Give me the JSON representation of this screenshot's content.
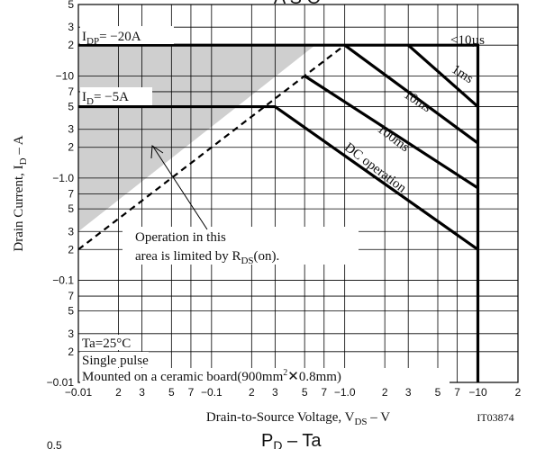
{
  "chart_data": {
    "type": "line",
    "top_title_fragment": "A S O",
    "bottom_title": {
      "main": "P",
      "sub": "D",
      "rest": " – Ta"
    },
    "bottom_fragment_label": "0.5",
    "xaxis": {
      "scale": "log",
      "range": [
        0.01,
        20
      ],
      "label_prefix": "Drain-to-Source Voltage, V",
      "label_sub": "DS",
      "label_suffix": "  –  V",
      "ticks": [
        {
          "v": 0.01,
          "t": "−0.01"
        },
        {
          "v": 0.02,
          "t": "2"
        },
        {
          "v": 0.03,
          "t": "3"
        },
        {
          "v": 0.05,
          "t": "5"
        },
        {
          "v": 0.07,
          "t": "7"
        },
        {
          "v": 0.1,
          "t": "−0.1"
        },
        {
          "v": 0.2,
          "t": "2"
        },
        {
          "v": 0.3,
          "t": "3"
        },
        {
          "v": 0.5,
          "t": "5"
        },
        {
          "v": 0.7,
          "t": "7"
        },
        {
          "v": 1,
          "t": "−1.0"
        },
        {
          "v": 2,
          "t": "2"
        },
        {
          "v": 3,
          "t": "3"
        },
        {
          "v": 5,
          "t": "5"
        },
        {
          "v": 7,
          "t": "7"
        },
        {
          "v": 10,
          "t": "−10"
        },
        {
          "v": 20,
          "t": "2"
        }
      ]
    },
    "yaxis": {
      "scale": "log",
      "range": [
        0.01,
        50
      ],
      "label_prefix": "Drain Current, I",
      "label_sub": "D",
      "label_suffix": "  –  A",
      "ticks": [
        {
          "v": 0.01,
          "t": "−0.01"
        },
        {
          "v": 0.02,
          "t": "2"
        },
        {
          "v": 0.03,
          "t": "3"
        },
        {
          "v": 0.05,
          "t": "5"
        },
        {
          "v": 0.07,
          "t": "7"
        },
        {
          "v": 0.1,
          "t": "−0.1"
        },
        {
          "v": 0.2,
          "t": "2"
        },
        {
          "v": 0.3,
          "t": "3"
        },
        {
          "v": 0.5,
          "t": "5"
        },
        {
          "v": 0.7,
          "t": "7"
        },
        {
          "v": 1,
          "t": "−1.0"
        },
        {
          "v": 2,
          "t": "2"
        },
        {
          "v": 3,
          "t": "3"
        },
        {
          "v": 5,
          "t": "5"
        },
        {
          "v": 7,
          "t": "7"
        },
        {
          "v": 10,
          "t": "−10"
        },
        {
          "v": 20,
          "t": "2"
        },
        {
          "v": 30,
          "t": "3"
        },
        {
          "v": 50,
          "t": "5"
        }
      ]
    },
    "grid": true,
    "series": [
      {
        "name": "<10µs",
        "points": [
          [
            0.01,
            20
          ],
          [
            10,
            20
          ],
          [
            10,
            0.01
          ]
        ]
      },
      {
        "name": "1ms",
        "points": [
          [
            3,
            20
          ],
          [
            10,
            5
          ]
        ]
      },
      {
        "name": "10ms",
        "points": [
          [
            1,
            20
          ],
          [
            10,
            2.2
          ]
        ]
      },
      {
        "name": "100ms",
        "points": [
          [
            0.5,
            10
          ],
          [
            10,
            0.8
          ]
        ]
      },
      {
        "name": "DC operation",
        "points": [
          [
            0.01,
            5
          ],
          [
            0.3,
            5
          ],
          [
            10,
            0.2
          ]
        ]
      }
    ],
    "rds_limit_line": {
      "points": [
        [
          0.01,
          0.2
        ],
        [
          1,
          20
        ]
      ]
    },
    "shaded_region": [
      [
        0.01,
        0.3
      ],
      [
        0.01,
        20
      ],
      [
        0.6,
        20
      ]
    ],
    "annotations": {
      "idp": "I",
      "idp_sub": "DP",
      "idp_rest": "= −20A",
      "id": "I",
      "id_sub": "D",
      "id_rest": "= −5A",
      "note_line1": "Operation in this",
      "note_line2": "area is limited by R",
      "note_sub": "DS",
      "note_rest": "(on).",
      "cond1": "Ta=25°C",
      "cond2": "Single pulse",
      "cond3_a": "Mounted on a ceramic board(900mm",
      "cond3_sup": "2",
      "cond3_b": "✕0.8mm)",
      "doc_code": "IT03874"
    }
  }
}
